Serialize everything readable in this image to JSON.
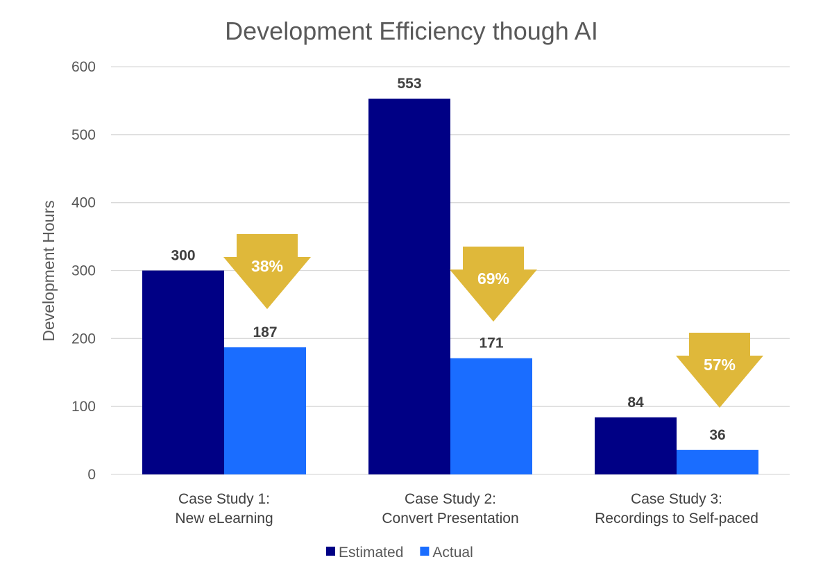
{
  "chart_data": {
    "type": "bar",
    "title": "Development Efficiency though AI",
    "xlabel": "",
    "ylabel": "Development Hours",
    "ylim": [
      0,
      600
    ],
    "yticks": [
      0,
      100,
      200,
      300,
      400,
      500,
      600
    ],
    "grid": true,
    "legend_position": "bottom",
    "categories": [
      [
        "Case Study 1:",
        "New eLearning"
      ],
      [
        "Case Study 2:",
        "Convert Presentation"
      ],
      [
        "Case Study 3:",
        "Recordings to Self-paced"
      ]
    ],
    "series": [
      {
        "name": "Estimated",
        "values": [
          300,
          553,
          84
        ],
        "color": "#000085"
      },
      {
        "name": "Actual",
        "values": [
          187,
          171,
          36
        ],
        "color": "#1a6dff"
      }
    ],
    "annotations": [
      {
        "category": 0,
        "text": "38%",
        "shape": "down-arrow",
        "color": "#dfb83a"
      },
      {
        "category": 1,
        "text": "69%",
        "shape": "down-arrow",
        "color": "#dfb83a"
      },
      {
        "category": 2,
        "text": "57%",
        "shape": "down-arrow",
        "color": "#dfb83a"
      }
    ]
  }
}
